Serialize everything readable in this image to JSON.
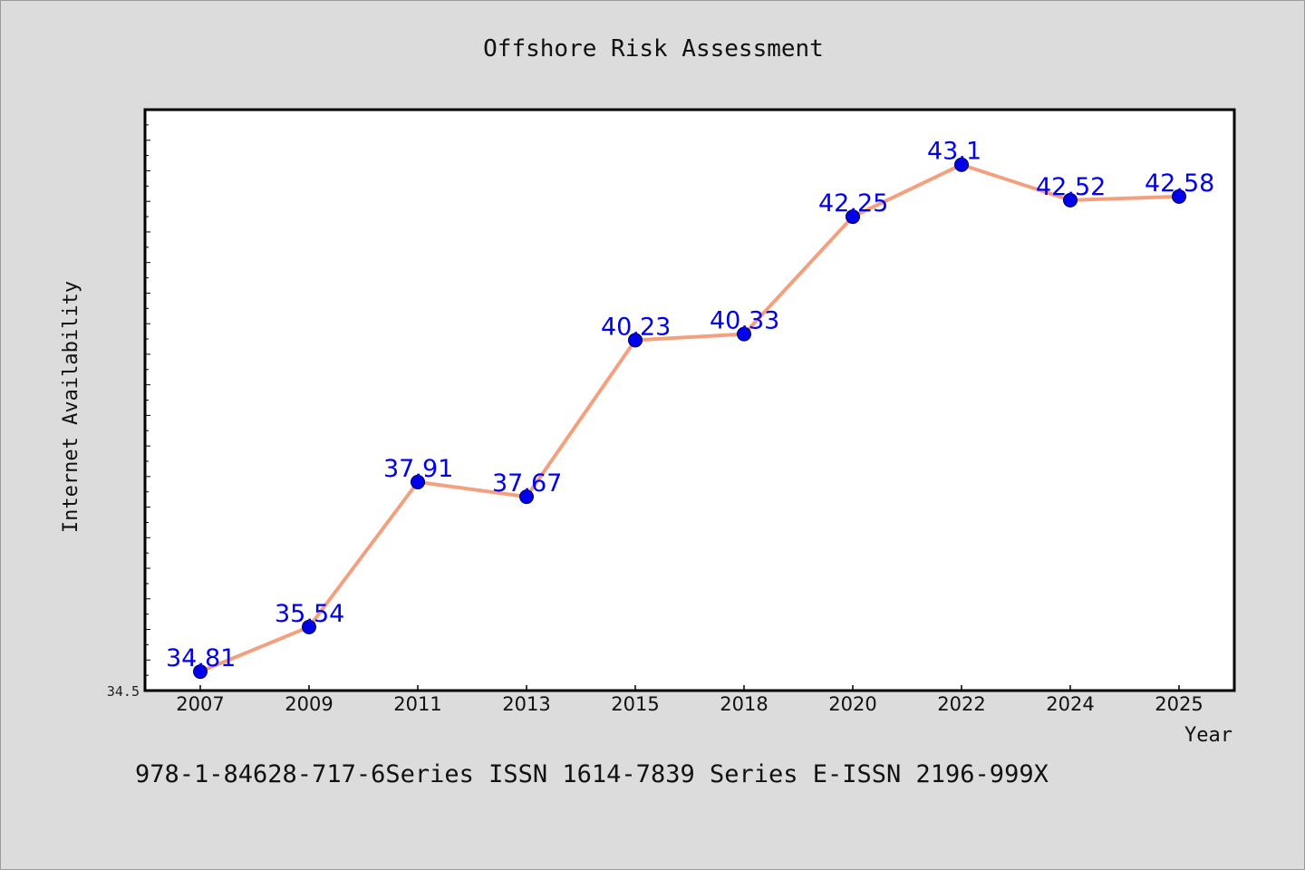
{
  "chart_data": {
    "type": "line",
    "title": "Offshore Risk Assessment",
    "xlabel": "Year",
    "ylabel": "Internet Availability",
    "categories": [
      "2007",
      "2009",
      "2011",
      "2013",
      "2015",
      "2018",
      "2020",
      "2022",
      "2024",
      "2025"
    ],
    "values": [
      34.81,
      35.54,
      37.91,
      37.67,
      40.23,
      40.33,
      42.25,
      43.1,
      42.52,
      42.58
    ],
    "data_labels": [
      "34.81",
      "35.54",
      "37.91",
      "37.67",
      "40.23",
      "40.33",
      "42.25",
      "43.1",
      "42.52",
      "42.58"
    ],
    "ylim": [
      34.5,
      44.0
    ],
    "y_tick_labels": [
      "34.5"
    ],
    "grid": false,
    "line_color": "#f4a07f",
    "marker_color": "#0000ee",
    "label_color": "#0000ee"
  },
  "footer_text": "978-1-84628-717-6Series ISSN 1614-7839 Series E-ISSN 2196-999X",
  "colors": {
    "background": "#dcdcdc",
    "plot_background": "#ffffff"
  }
}
